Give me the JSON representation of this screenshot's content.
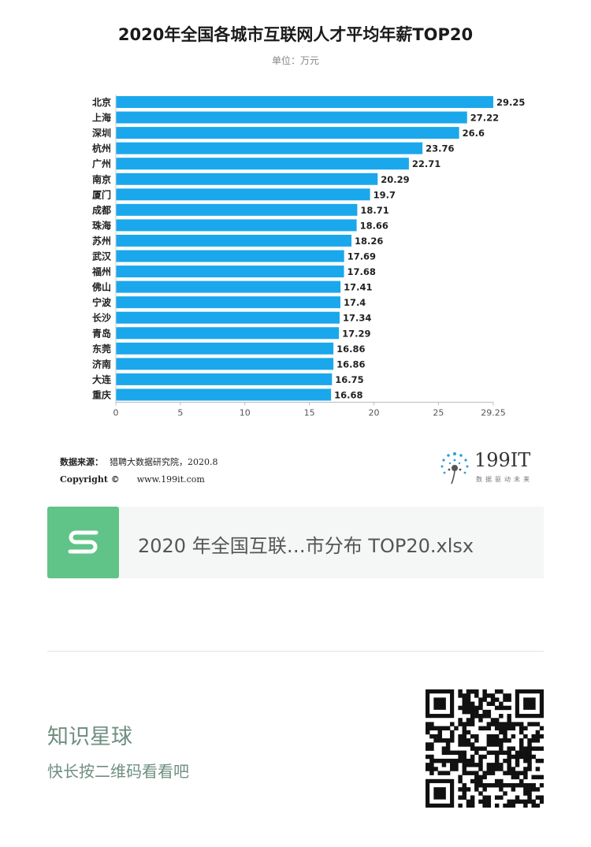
{
  "chart_data": {
    "type": "bar",
    "orientation": "horizontal",
    "title": "2020年全国各城市互联网人才平均年薪TOP20",
    "subtitle": "单位：万元",
    "categories": [
      "北京",
      "上海",
      "深圳",
      "杭州",
      "广州",
      "南京",
      "厦门",
      "成都",
      "珠海",
      "苏州",
      "武汉",
      "福州",
      "佛山",
      "宁波",
      "长沙",
      "青岛",
      "东莞",
      "济南",
      "大连",
      "重庆"
    ],
    "values": [
      29.25,
      27.22,
      26.6,
      23.76,
      22.71,
      20.29,
      19.7,
      18.71,
      18.66,
      18.26,
      17.69,
      17.68,
      17.41,
      17.4,
      17.34,
      17.29,
      16.86,
      16.86,
      16.75,
      16.68
    ],
    "value_labels": [
      "29.25",
      "27.22",
      "26.6",
      "23.76",
      "22.71",
      "20.29",
      "19.7",
      "18.71",
      "18.66",
      "18.26",
      "17.69",
      "17.68",
      "17.41",
      "17.4",
      "17.34",
      "17.29",
      "16.86",
      "16.86",
      "16.75",
      "16.68"
    ],
    "xlim": [
      0,
      29.25
    ],
    "xticks": [
      0,
      5,
      10,
      15,
      20,
      25,
      29.25
    ],
    "xtick_labels": [
      "0",
      "5",
      "10",
      "15",
      "20",
      "25",
      "29.25"
    ],
    "bar_color": "#1aa7ec",
    "grid": false
  },
  "source": {
    "label": "数据来源：",
    "text": "猎聘大数据研究院，2020.8",
    "copyright_label": "Copyright ©",
    "copyright_url": "www.199it.com"
  },
  "logo": {
    "text": "199IT",
    "tagline": "数据驱动未来"
  },
  "file_card": {
    "icon": "spreadsheet-s-icon",
    "icon_color": "#60c387",
    "file_name": "2020 年全国互联…市分布 TOP20.xlsx"
  },
  "footer": {
    "title": "知识星球",
    "subtitle": "快长按二维码看看吧",
    "qr_icon": "qr-code-icon"
  }
}
